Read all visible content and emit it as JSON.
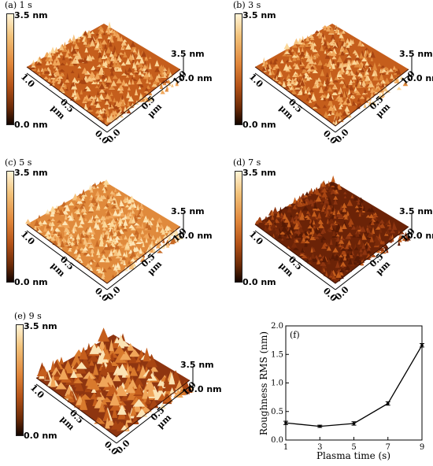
{
  "panels": [
    {
      "title": "(a) 1 s",
      "bar_top": "3.5 nm",
      "bar_bottom": "0.0 nm",
      "z_top": "3.5 nm",
      "z_bottom": "0.0 nm",
      "left_axis": [
        "1.0",
        "0.5",
        "μm",
        "0.0"
      ],
      "right_axis": [
        "0.0",
        "0.5",
        "μm",
        "1.0"
      ],
      "shade": "mid"
    },
    {
      "title": "(b) 3 s",
      "bar_top": "3.5 nm",
      "bar_bottom": "0.0 nm",
      "z_top": "3.5 nm",
      "z_bottom": "0.0 nm",
      "left_axis": [
        "1.0",
        "0.5",
        "μm",
        "0.0"
      ],
      "right_axis": [
        "0.0",
        "0.5",
        "μm",
        "1.0"
      ],
      "shade": "mid"
    },
    {
      "title": "(c) 5 s",
      "bar_top": "3.5 nm",
      "bar_bottom": "0.0 nm",
      "z_top": "3.5 nm",
      "z_bottom": "0.0 nm",
      "left_axis": [
        "1.0",
        "0.5",
        "μm",
        "0.0"
      ],
      "right_axis": [
        "0.0",
        "0.5",
        "μm",
        "1.0"
      ],
      "shade": "light"
    },
    {
      "title": "(d) 7 s",
      "bar_top": "3.5 nm",
      "bar_bottom": "0.0 nm",
      "z_top": "3.5 nm",
      "z_bottom": "0.0 nm",
      "left_axis": [
        "1.0",
        "0.5",
        "μm",
        "0.0"
      ],
      "right_axis": [
        "0.0",
        "0.5",
        "μm",
        "1.0"
      ],
      "shade": "dark"
    },
    {
      "title": "(e) 9 s",
      "bar_top": "3.5 nm",
      "bar_bottom": "0.0 nm",
      "z_top": "3.5 nm",
      "z_bottom": "0.0 nm",
      "left_axis": [
        "1.0",
        "0.5",
        "μm",
        "0.0"
      ],
      "right_axis": [
        "0.0",
        "0.5",
        "μm",
        "1.0"
      ],
      "shade": "rough"
    }
  ],
  "chart_data": {
    "type": "line",
    "panel_label": "(f)",
    "xlabel": "Plasma time (s)",
    "ylabel": "Roughness RMS (nm)",
    "x": [
      1,
      3,
      5,
      7,
      9
    ],
    "series": [
      {
        "values": [
          0.3,
          0.24,
          0.29,
          0.64,
          1.66
        ],
        "errors": [
          0.03,
          0.02,
          0.03,
          0.03,
          0.03
        ]
      }
    ],
    "xlim": [
      1,
      9
    ],
    "ylim": [
      0.0,
      2.0
    ],
    "xticks": [
      "1",
      "3",
      "5",
      "7",
      "9"
    ],
    "yticks": [
      "0.0",
      "0.5",
      "1.0",
      "1.5",
      "2.0"
    ],
    "color": "#000000"
  },
  "colors": {
    "bright": "#f4b56a",
    "mid": "#d97a2d",
    "dark": "#8e3510",
    "deep": "#3a1204"
  }
}
